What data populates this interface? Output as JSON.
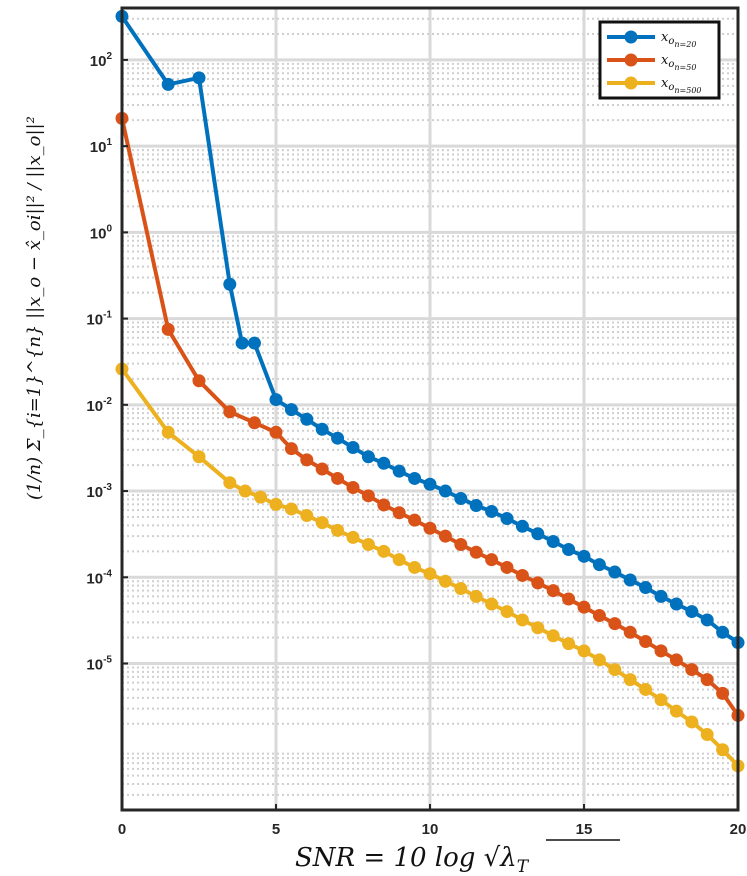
{
  "chart_data": {
    "type": "line",
    "x_label": "SNR = 10 log √λ",
    "x_label_subscript": "T",
    "y_label": "(1/n) Σ_{i=1}^{n} ||x_o − x̂_oi||² / ||x_o||²",
    "y_scale": "log",
    "xlim": [
      0,
      20
    ],
    "ylim": [
      2e-07,
      400
    ],
    "x_ticks": [
      0,
      5,
      10,
      15,
      20
    ],
    "y_ticks": [
      {
        "base": "10",
        "exp": "2"
      },
      {
        "base": "10",
        "exp": "1"
      },
      {
        "base": "10",
        "exp": "0"
      },
      {
        "base": "10",
        "exp": "-1"
      },
      {
        "base": "10",
        "exp": "-2"
      },
      {
        "base": "10",
        "exp": "-3"
      },
      {
        "base": "10",
        "exp": "-4"
      },
      {
        "base": "10",
        "exp": "-5"
      }
    ],
    "y_tick_values": [
      100,
      10,
      1,
      0.1,
      0.01,
      0.001,
      0.0001,
      1e-05
    ],
    "grid": true,
    "legend_position": "top-right",
    "series": [
      {
        "name": "x_o, n=20",
        "legend_main": "x",
        "legend_sub": "o",
        "legend_subsub": "n=20",
        "color": "#0072BD",
        "points": [
          [
            0,
            320
          ],
          [
            1.5,
            52
          ],
          [
            2.5,
            62
          ],
          [
            3.5,
            0.25
          ],
          [
            3.9,
            0.052
          ],
          [
            4.3,
            0.052
          ],
          [
            5,
            0.0115
          ],
          [
            5.5,
            0.0088
          ],
          [
            6,
            0.0068
          ],
          [
            6.5,
            0.0052
          ],
          [
            7,
            0.0041
          ],
          [
            7.5,
            0.0032
          ],
          [
            8,
            0.0025
          ],
          [
            8.5,
            0.0021
          ],
          [
            9,
            0.0017
          ],
          [
            9.5,
            0.0014
          ],
          [
            10,
            0.0012
          ],
          [
            10.5,
            0.001
          ],
          [
            11,
            0.00082
          ],
          [
            11.5,
            0.00068
          ],
          [
            12,
            0.00058
          ],
          [
            12.5,
            0.00048
          ],
          [
            13,
            0.00039
          ],
          [
            13.5,
            0.00032
          ],
          [
            14,
            0.00026
          ],
          [
            14.5,
            0.00021
          ],
          [
            15,
            0.000175
          ],
          [
            15.5,
            0.00014
          ],
          [
            16,
            0.000115
          ],
          [
            16.5,
            9.3e-05
          ],
          [
            17,
            7.6e-05
          ],
          [
            17.5,
            6e-05
          ],
          [
            18,
            4.9e-05
          ],
          [
            18.5,
            4e-05
          ],
          [
            19,
            3.2e-05
          ],
          [
            19.5,
            2.3e-05
          ],
          [
            20,
            1.75e-05
          ]
        ]
      },
      {
        "name": "x_o, n=50",
        "legend_main": "x",
        "legend_sub": "o",
        "legend_subsub": "n=50",
        "color": "#D95319",
        "points": [
          [
            0,
            21
          ],
          [
            1.5,
            0.075
          ],
          [
            2.5,
            0.019
          ],
          [
            3.5,
            0.0083
          ],
          [
            4.3,
            0.0062
          ],
          [
            5,
            0.0048
          ],
          [
            5.5,
            0.0031
          ],
          [
            6,
            0.0023
          ],
          [
            6.5,
            0.0018
          ],
          [
            7,
            0.0014
          ],
          [
            7.5,
            0.0011
          ],
          [
            8,
            0.00088
          ],
          [
            8.5,
            0.00069
          ],
          [
            9,
            0.00056
          ],
          [
            9.5,
            0.00046
          ],
          [
            10,
            0.00037
          ],
          [
            10.5,
            0.0003
          ],
          [
            11,
            0.00024
          ],
          [
            11.5,
            0.000195
          ],
          [
            12,
            0.00016
          ],
          [
            12.5,
            0.00013
          ],
          [
            13,
            0.000105
          ],
          [
            13.5,
            8.6e-05
          ],
          [
            14,
            7e-05
          ],
          [
            14.5,
            5.6e-05
          ],
          [
            15,
            4.5e-05
          ],
          [
            15.5,
            3.6e-05
          ],
          [
            16,
            2.9e-05
          ],
          [
            16.5,
            2.3e-05
          ],
          [
            17,
            1.8e-05
          ],
          [
            17.5,
            1.4e-05
          ],
          [
            18,
            1.1e-05
          ],
          [
            18.5,
            8.5e-06
          ],
          [
            19,
            6.5e-06
          ],
          [
            19.5,
            4.5e-06
          ],
          [
            20,
            2.5e-06
          ]
        ]
      },
      {
        "name": "x_o, n=500",
        "legend_main": "x",
        "legend_sub": "o",
        "legend_subsub": "n=500",
        "color": "#EDB120",
        "points": [
          [
            0,
            0.026
          ],
          [
            1.5,
            0.0048
          ],
          [
            2.5,
            0.0025
          ],
          [
            3.5,
            0.00125
          ],
          [
            4,
            0.001
          ],
          [
            4.5,
            0.00085
          ],
          [
            5,
            0.0007
          ],
          [
            5.5,
            0.00062
          ],
          [
            6,
            0.00052
          ],
          [
            6.5,
            0.00043
          ],
          [
            7,
            0.00035
          ],
          [
            7.5,
            0.00029
          ],
          [
            8,
            0.00024
          ],
          [
            8.5,
            0.0002
          ],
          [
            9,
            0.00016
          ],
          [
            9.5,
            0.00013
          ],
          [
            10,
            0.00011
          ],
          [
            10.5,
            9e-05
          ],
          [
            11,
            7.4e-05
          ],
          [
            11.5,
            6e-05
          ],
          [
            12,
            4.9e-05
          ],
          [
            12.5,
            4e-05
          ],
          [
            13,
            3.2e-05
          ],
          [
            13.5,
            2.6e-05
          ],
          [
            14,
            2.1e-05
          ],
          [
            14.5,
            1.7e-05
          ],
          [
            15,
            1.4e-05
          ],
          [
            15.5,
            1.1e-05
          ],
          [
            16,
            8.5e-06
          ],
          [
            16.5,
            6.5e-06
          ],
          [
            17,
            5e-06
          ],
          [
            17.5,
            3.8e-06
          ],
          [
            18,
            2.8e-06
          ],
          [
            18.5,
            2.1e-06
          ],
          [
            19,
            1.5e-06
          ],
          [
            19.5,
            1e-06
          ],
          [
            20,
            6.5e-07
          ]
        ]
      }
    ]
  }
}
